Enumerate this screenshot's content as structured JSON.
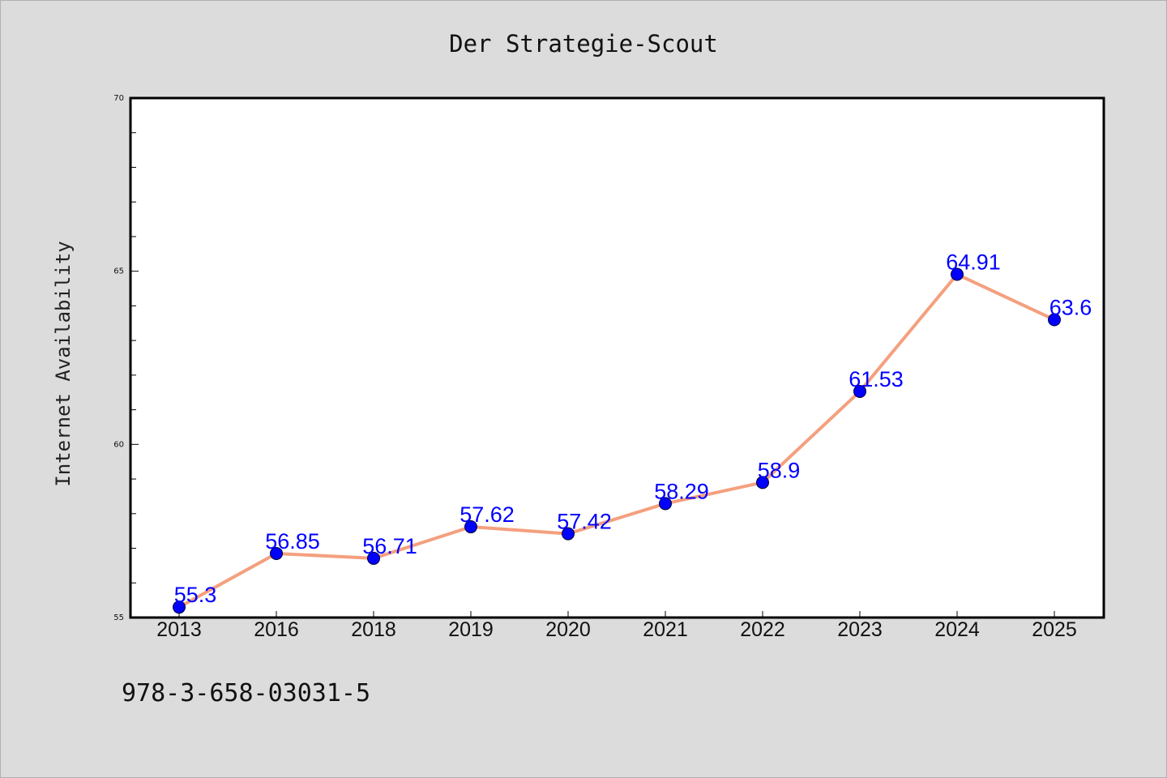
{
  "chart_data": {
    "type": "line",
    "title": "Der Strategie-Scout",
    "xlabel": "",
    "ylabel": "Internet Availability",
    "categories": [
      "2013",
      "2016",
      "2018",
      "2019",
      "2020",
      "2021",
      "2022",
      "2023",
      "2024",
      "2025"
    ],
    "series": [
      {
        "values": [
          55.3,
          56.85,
          56.71,
          57.62,
          57.42,
          58.29,
          58.9,
          61.53,
          64.91,
          63.6
        ],
        "data_labels": [
          "55.3",
          "56.85",
          "56.71",
          "57.62",
          "57.42",
          "58.29",
          "58.9",
          "61.53",
          "64.91",
          "63.6"
        ]
      }
    ],
    "ylim": [
      55,
      70
    ],
    "yticks": [
      "55",
      "60",
      "65",
      "70"
    ],
    "grid": false,
    "line_color": "#f4a07e",
    "marker_color": "#0000ff",
    "label_color": "#0000ff"
  },
  "footer": {
    "text": "978-3-658-03031-5"
  }
}
